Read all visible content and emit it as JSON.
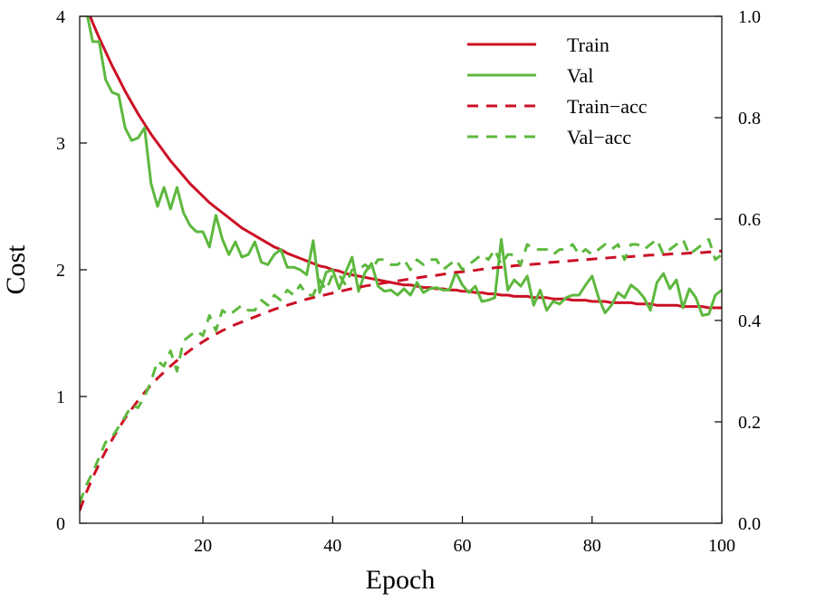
{
  "chart_data": {
    "type": "line",
    "xlabel": "Epoch",
    "ylabel": "Cost",
    "xlim": [
      1,
      100
    ],
    "ylim_left": [
      0,
      4
    ],
    "ylim_right": [
      0.0,
      1.0
    ],
    "x_ticks": [
      20,
      40,
      60,
      80,
      100
    ],
    "x_tick_labels": [
      "20",
      "40",
      "60",
      "80",
      "100"
    ],
    "y_left_ticks": [
      0,
      1,
      2,
      3,
      4
    ],
    "y_left_tick_labels": [
      "0",
      "1",
      "2",
      "3",
      "4"
    ],
    "y_right_ticks": [
      0.0,
      0.2,
      0.4,
      0.6,
      0.8,
      1.0
    ],
    "y_right_tick_labels": [
      "0.0",
      "0.2",
      "0.4",
      "0.6",
      "0.8",
      "1.0"
    ],
    "grid": false,
    "legend_position": "top-right",
    "colors": {
      "train": "#cc1025",
      "val": "#5db83e"
    },
    "series": [
      {
        "name": "Train",
        "axis": "left",
        "style": "solid",
        "color": "#cc1025",
        "x": [
          1,
          2,
          3,
          4,
          5,
          6,
          7,
          8,
          9,
          10,
          11,
          12,
          13,
          14,
          15,
          16,
          17,
          18,
          19,
          20,
          21,
          22,
          23,
          24,
          25,
          26,
          27,
          28,
          29,
          30,
          31,
          32,
          33,
          34,
          35,
          36,
          37,
          38,
          39,
          40,
          41,
          42,
          43,
          44,
          45,
          46,
          47,
          48,
          49,
          50,
          51,
          52,
          53,
          54,
          55,
          56,
          57,
          58,
          59,
          60,
          61,
          62,
          63,
          64,
          65,
          66,
          67,
          68,
          69,
          70,
          71,
          72,
          73,
          74,
          75,
          76,
          77,
          78,
          79,
          80,
          81,
          82,
          83,
          84,
          85,
          86,
          87,
          88,
          89,
          90,
          91,
          92,
          93,
          94,
          95,
          96,
          97,
          98,
          99,
          100
        ],
        "y": [
          4.2,
          4.08,
          3.95,
          3.83,
          3.72,
          3.61,
          3.51,
          3.41,
          3.32,
          3.23,
          3.15,
          3.07,
          3.0,
          2.93,
          2.86,
          2.8,
          2.74,
          2.68,
          2.63,
          2.58,
          2.53,
          2.49,
          2.45,
          2.41,
          2.37,
          2.33,
          2.3,
          2.27,
          2.24,
          2.21,
          2.18,
          2.16,
          2.13,
          2.11,
          2.09,
          2.07,
          2.05,
          2.03,
          2.02,
          2.0,
          1.99,
          1.97,
          1.96,
          1.95,
          1.94,
          1.93,
          1.92,
          1.91,
          1.9,
          1.89,
          1.88,
          1.88,
          1.87,
          1.86,
          1.86,
          1.85,
          1.85,
          1.84,
          1.84,
          1.83,
          1.83,
          1.82,
          1.82,
          1.81,
          1.81,
          1.8,
          1.8,
          1.79,
          1.79,
          1.79,
          1.78,
          1.78,
          1.78,
          1.77,
          1.77,
          1.77,
          1.76,
          1.76,
          1.76,
          1.75,
          1.75,
          1.75,
          1.74,
          1.74,
          1.74,
          1.74,
          1.73,
          1.73,
          1.73,
          1.72,
          1.72,
          1.72,
          1.72,
          1.71,
          1.71,
          1.71,
          1.71,
          1.7,
          1.7,
          1.7
        ]
      },
      {
        "name": "Val",
        "axis": "left",
        "style": "solid",
        "color": "#5db83e",
        "x": [
          1,
          2,
          3,
          4,
          5,
          6,
          7,
          8,
          9,
          10,
          11,
          12,
          13,
          14,
          15,
          16,
          17,
          18,
          19,
          20,
          21,
          22,
          23,
          24,
          25,
          26,
          27,
          28,
          29,
          30,
          31,
          32,
          33,
          34,
          35,
          36,
          37,
          38,
          39,
          40,
          41,
          42,
          43,
          44,
          45,
          46,
          47,
          48,
          49,
          50,
          51,
          52,
          53,
          54,
          55,
          56,
          57,
          58,
          59,
          60,
          61,
          62,
          63,
          64,
          65,
          66,
          67,
          68,
          69,
          70,
          71,
          72,
          73,
          74,
          75,
          76,
          77,
          78,
          79,
          80,
          81,
          82,
          83,
          84,
          85,
          86,
          87,
          88,
          89,
          90,
          91,
          92,
          93,
          94,
          95,
          96,
          97,
          98,
          99,
          100
        ],
        "y": [
          4.2,
          4.05,
          3.8,
          3.8,
          3.5,
          3.4,
          3.38,
          3.12,
          3.02,
          3.04,
          3.12,
          2.68,
          2.5,
          2.65,
          2.48,
          2.65,
          2.45,
          2.35,
          2.3,
          2.3,
          2.18,
          2.43,
          2.24,
          2.12,
          2.22,
          2.1,
          2.12,
          2.22,
          2.06,
          2.04,
          2.12,
          2.16,
          2.02,
          2.02,
          2.0,
          1.96,
          2.23,
          1.82,
          1.98,
          2.0,
          1.85,
          1.98,
          2.1,
          1.83,
          1.98,
          2.05,
          1.87,
          1.83,
          1.84,
          1.8,
          1.85,
          1.8,
          1.9,
          1.82,
          1.85,
          1.86,
          1.84,
          1.84,
          1.98,
          1.88,
          1.82,
          1.87,
          1.75,
          1.76,
          1.78,
          2.24,
          1.84,
          1.92,
          1.87,
          1.95,
          1.72,
          1.84,
          1.68,
          1.75,
          1.73,
          1.78,
          1.8,
          1.8,
          1.88,
          1.95,
          1.78,
          1.66,
          1.72,
          1.82,
          1.78,
          1.88,
          1.84,
          1.78,
          1.68,
          1.9,
          1.97,
          1.85,
          1.92,
          1.7,
          1.85,
          1.78,
          1.64,
          1.65,
          1.8,
          1.84
        ]
      },
      {
        "name": "Train−acc",
        "axis": "right",
        "style": "dashed",
        "color": "#cc1025",
        "x": [
          1,
          2,
          3,
          4,
          5,
          6,
          7,
          8,
          9,
          10,
          11,
          12,
          13,
          14,
          15,
          16,
          17,
          18,
          19,
          20,
          21,
          22,
          23,
          24,
          25,
          26,
          27,
          28,
          29,
          30,
          31,
          32,
          33,
          34,
          35,
          36,
          37,
          38,
          39,
          40,
          41,
          42,
          43,
          44,
          45,
          46,
          47,
          48,
          49,
          50,
          51,
          52,
          53,
          54,
          55,
          56,
          57,
          58,
          59,
          60,
          61,
          62,
          63,
          64,
          65,
          66,
          67,
          68,
          69,
          70,
          71,
          72,
          73,
          74,
          75,
          76,
          77,
          78,
          79,
          80,
          81,
          82,
          83,
          84,
          85,
          86,
          87,
          88,
          89,
          90,
          91,
          92,
          93,
          94,
          95,
          96,
          97,
          98,
          99,
          100
        ],
        "y": [
          0.025,
          0.06,
          0.09,
          0.117,
          0.142,
          0.165,
          0.187,
          0.207,
          0.225,
          0.242,
          0.258,
          0.272,
          0.286,
          0.298,
          0.31,
          0.321,
          0.331,
          0.341,
          0.35,
          0.358,
          0.366,
          0.373,
          0.38,
          0.386,
          0.392,
          0.397,
          0.402,
          0.407,
          0.412,
          0.417,
          0.422,
          0.426,
          0.43,
          0.434,
          0.438,
          0.442,
          0.445,
          0.448,
          0.451,
          0.454,
          0.457,
          0.46,
          0.463,
          0.465,
          0.468,
          0.47,
          0.472,
          0.474,
          0.476,
          0.478,
          0.48,
          0.482,
          0.484,
          0.486,
          0.488,
          0.489,
          0.491,
          0.493,
          0.495,
          0.496,
          0.498,
          0.499,
          0.501,
          0.502,
          0.504,
          0.505,
          0.506,
          0.508,
          0.509,
          0.51,
          0.511,
          0.512,
          0.514,
          0.515,
          0.516,
          0.517,
          0.518,
          0.519,
          0.52,
          0.521,
          0.522,
          0.523,
          0.524,
          0.525,
          0.525,
          0.526,
          0.527,
          0.528,
          0.529,
          0.529,
          0.53,
          0.531,
          0.532,
          0.532,
          0.533,
          0.534,
          0.534,
          0.535,
          0.536,
          0.537
        ]
      },
      {
        "name": "Val−acc",
        "axis": "right",
        "style": "dashed",
        "color": "#5db83e",
        "x": [
          1,
          2,
          3,
          4,
          5,
          6,
          7,
          8,
          9,
          10,
          11,
          12,
          13,
          14,
          15,
          16,
          17,
          18,
          19,
          20,
          21,
          22,
          23,
          24,
          25,
          26,
          27,
          28,
          29,
          30,
          31,
          32,
          33,
          34,
          35,
          36,
          37,
          38,
          39,
          40,
          41,
          42,
          43,
          44,
          45,
          46,
          47,
          48,
          49,
          50,
          51,
          52,
          53,
          54,
          55,
          56,
          57,
          58,
          59,
          60,
          61,
          62,
          63,
          64,
          65,
          66,
          67,
          68,
          69,
          70,
          71,
          72,
          73,
          74,
          75,
          76,
          77,
          78,
          79,
          80,
          81,
          82,
          83,
          84,
          85,
          86,
          87,
          88,
          89,
          90,
          91,
          92,
          93,
          94,
          95,
          96,
          97,
          98,
          99,
          100
        ],
        "y": [
          0.04,
          0.075,
          0.1,
          0.13,
          0.16,
          0.17,
          0.19,
          0.21,
          0.232,
          0.228,
          0.25,
          0.28,
          0.32,
          0.31,
          0.34,
          0.3,
          0.36,
          0.37,
          0.38,
          0.37,
          0.41,
          0.38,
          0.42,
          0.41,
          0.42,
          0.43,
          0.42,
          0.42,
          0.44,
          0.43,
          0.45,
          0.44,
          0.46,
          0.45,
          0.47,
          0.45,
          0.45,
          0.48,
          0.46,
          0.49,
          0.49,
          0.47,
          0.5,
          0.5,
          0.51,
          0.5,
          0.52,
          0.52,
          0.51,
          0.51,
          0.52,
          0.5,
          0.52,
          0.51,
          0.52,
          0.52,
          0.5,
          0.51,
          0.52,
          0.5,
          0.51,
          0.52,
          0.53,
          0.52,
          0.54,
          0.51,
          0.53,
          0.53,
          0.51,
          0.55,
          0.54,
          0.54,
          0.54,
          0.53,
          0.54,
          0.54,
          0.55,
          0.53,
          0.54,
          0.53,
          0.54,
          0.55,
          0.54,
          0.55,
          0.52,
          0.55,
          0.55,
          0.54,
          0.55,
          0.56,
          0.53,
          0.54,
          0.55,
          0.56,
          0.53,
          0.54,
          0.55,
          0.56,
          0.52,
          0.53
        ]
      }
    ]
  }
}
